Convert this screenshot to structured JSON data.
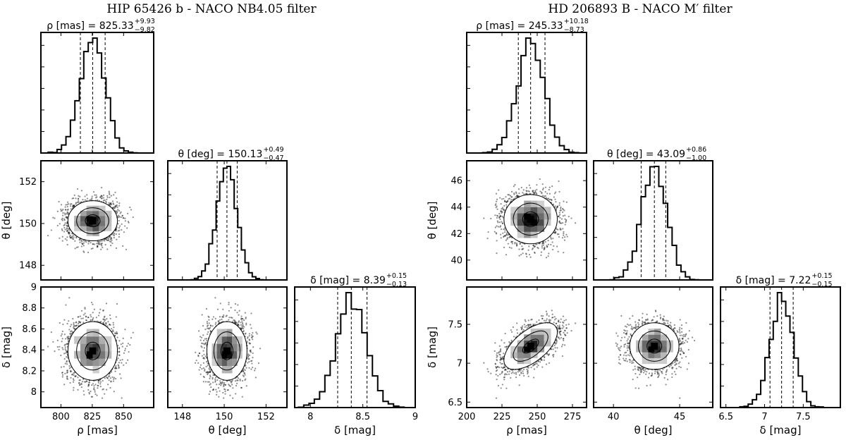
{
  "chart_data": [
    {
      "type": "corner",
      "title": "HIP 65426 b - NACO NB4.05 filter",
      "params": [
        {
          "symbol": "ρ",
          "unit": "mas",
          "median": 825.33,
          "plus": 9.93,
          "minus": 9.82,
          "label_main": "ρ [mas] = 825.33",
          "label_sup": "+9.93",
          "label_sub": "−9.82",
          "axis_label": "ρ [mas]",
          "range": [
            784,
            874
          ],
          "ticks": [
            800,
            825,
            850
          ]
        },
        {
          "symbol": "θ",
          "unit": "deg",
          "median": 150.13,
          "plus": 0.49,
          "minus": 0.47,
          "label_main": "θ [deg] = 150.13",
          "label_sup": "+0.49",
          "label_sub": "−0.47",
          "axis_label": "θ [deg]",
          "range": [
            147.3,
            153.0
          ],
          "ticks": [
            148,
            150,
            152
          ]
        },
        {
          "symbol": "δ",
          "unit": "mag",
          "median": 8.39,
          "plus": 0.15,
          "minus": 0.13,
          "label_main": "δ [mag] = 8.39",
          "label_sup": "+0.15",
          "label_sub": "−0.13",
          "axis_label": "δ [mag]",
          "range": [
            7.85,
            9.0
          ],
          "ticks": [
            8.0,
            8.2,
            8.4,
            8.6,
            8.8,
            9.0
          ],
          "diag_ticks": [
            8.0,
            8.5,
            9.0
          ]
        }
      ]
    },
    {
      "type": "corner",
      "title": "HD 206893 B - NACO M′ filter",
      "params": [
        {
          "symbol": "ρ",
          "unit": "mas",
          "median": 245.33,
          "plus": 10.18,
          "minus": 8.73,
          "label_main": "ρ [mas] = 245.33",
          "label_sup": "+10.18",
          "label_sub": "−8.73",
          "axis_label": "ρ [mas]",
          "range": [
            200,
            285
          ],
          "ticks": [
            200,
            225,
            250,
            275
          ]
        },
        {
          "symbol": "θ",
          "unit": "deg",
          "median": 43.09,
          "plus": 0.86,
          "minus": 1.0,
          "label_main": "θ [deg] = 43.09",
          "label_sup": "+0.86",
          "label_sub": "−1.00",
          "axis_label": "θ [deg]",
          "range": [
            38.5,
            47.5
          ],
          "ticks": [
            40,
            42,
            44,
            46
          ],
          "diag_ticks": [
            40,
            45
          ]
        },
        {
          "symbol": "δ",
          "unit": "mag",
          "median": 7.22,
          "plus": 0.15,
          "minus": 0.15,
          "label_main": "δ [mag] = 7.22",
          "label_sup": "+0.15",
          "label_sub": "−0.15",
          "axis_label": "δ [mag]",
          "range": [
            6.43,
            7.98
          ],
          "ticks": [
            6.5,
            7.0,
            7.5
          ],
          "diag_ticks": [
            6.5,
            7.0,
            7.5
          ]
        }
      ],
      "correlation_rho_delta": 0.6
    }
  ]
}
